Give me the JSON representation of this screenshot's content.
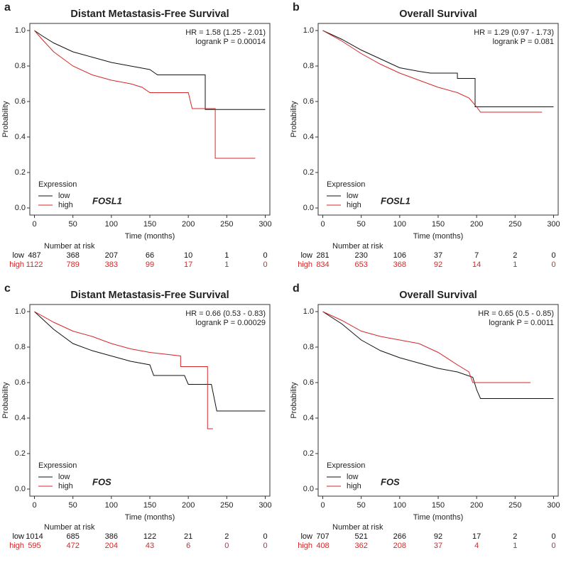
{
  "chart_data": [
    {
      "type": "line",
      "step": true,
      "panel": "a",
      "title": "Distant Metastasis-Free Survival",
      "xlabel": "Time (months)",
      "ylabel": "Probability",
      "hr": "HR = 1.58 (1.25 - 2.01)",
      "logrank": "logrank P = 0.00014",
      "gene": "FOSL1",
      "legend_title": "Expression",
      "risk_title": "Number at risk",
      "xlim": [
        -6,
        306
      ],
      "ylim": [
        -0.04,
        1.04
      ],
      "xticks": [
        0,
        50,
        100,
        150,
        200,
        250,
        300
      ],
      "yticks": [
        {
          "value": 0,
          "label": "0.0"
        },
        {
          "value": 0.2,
          "label": "0.2"
        },
        {
          "value": 0.4,
          "label": "0.4"
        },
        {
          "value": 0.6,
          "label": "0.6"
        },
        {
          "value": 0.8,
          "label": "0.8"
        },
        {
          "value": 1,
          "label": "1.0"
        }
      ],
      "series": [
        {
          "name": "low",
          "color": "#111111",
          "x": [
            0,
            10,
            25,
            50,
            75,
            100,
            125,
            150,
            160,
            222,
            222,
            300
          ],
          "values": [
            1,
            0.97,
            0.93,
            0.88,
            0.85,
            0.82,
            0.8,
            0.78,
            0.75,
            0.75,
            0.555,
            0.555
          ],
          "at_risk": [
            487,
            368,
            207,
            66,
            10,
            1,
            0
          ]
        },
        {
          "name": "high",
          "color": "#d62728",
          "x": [
            0,
            10,
            25,
            50,
            75,
            100,
            125,
            140,
            150,
            200,
            205,
            235,
            235,
            287
          ],
          "values": [
            1,
            0.95,
            0.88,
            0.8,
            0.75,
            0.72,
            0.7,
            0.68,
            0.65,
            0.65,
            0.56,
            0.56,
            0.28,
            0.28
          ],
          "at_risk": [
            1122,
            789,
            383,
            99,
            17,
            1,
            0
          ]
        }
      ]
    },
    {
      "type": "line",
      "step": true,
      "panel": "b",
      "title": "Overall Survival",
      "xlabel": "Time (months)",
      "ylabel": "Probability",
      "hr": "HR = 1.29 (0.97 - 1.73)",
      "logrank": "logrank P = 0.081",
      "gene": "FOSL1",
      "legend_title": "Expression",
      "risk_title": "Number at risk",
      "xlim": [
        -6,
        306
      ],
      "ylim": [
        -0.04,
        1.04
      ],
      "xticks": [
        0,
        50,
        100,
        150,
        200,
        250,
        300
      ],
      "yticks": [
        {
          "value": 0,
          "label": "0.0"
        },
        {
          "value": 0.2,
          "label": "0.2"
        },
        {
          "value": 0.4,
          "label": "0.4"
        },
        {
          "value": 0.6,
          "label": "0.6"
        },
        {
          "value": 0.8,
          "label": "0.8"
        },
        {
          "value": 1,
          "label": "1.0"
        }
      ],
      "series": [
        {
          "name": "low",
          "color": "#111111",
          "x": [
            0,
            25,
            50,
            75,
            100,
            125,
            140,
            175,
            175,
            198,
            198,
            300
          ],
          "values": [
            1,
            0.95,
            0.89,
            0.84,
            0.79,
            0.77,
            0.76,
            0.76,
            0.73,
            0.73,
            0.57,
            0.57
          ],
          "at_risk": [
            281,
            230,
            106,
            37,
            7,
            2,
            0
          ]
        },
        {
          "name": "high",
          "color": "#d62728",
          "x": [
            0,
            25,
            50,
            75,
            100,
            125,
            150,
            175,
            190,
            200,
            205,
            285
          ],
          "values": [
            1,
            0.94,
            0.87,
            0.81,
            0.76,
            0.72,
            0.68,
            0.65,
            0.62,
            0.57,
            0.54,
            0.54
          ],
          "at_risk": [
            834,
            653,
            368,
            92,
            14,
            1,
            0
          ]
        }
      ]
    },
    {
      "type": "line",
      "step": true,
      "panel": "c",
      "title": "Distant Metastasis-Free Survival",
      "xlabel": "Time (months)",
      "ylabel": "Probability",
      "hr": "HR = 0.66 (0.53 - 0.83)",
      "logrank": "logrank P = 0.00029",
      "gene": "FOS",
      "legend_title": "Expression",
      "risk_title": "Number at risk",
      "xlim": [
        -6,
        306
      ],
      "ylim": [
        -0.04,
        1.04
      ],
      "xticks": [
        0,
        50,
        100,
        150,
        200,
        250,
        300
      ],
      "yticks": [
        {
          "value": 0,
          "label": "0.0"
        },
        {
          "value": 0.2,
          "label": "0.2"
        },
        {
          "value": 0.4,
          "label": "0.4"
        },
        {
          "value": 0.6,
          "label": "0.6"
        },
        {
          "value": 0.8,
          "label": "0.8"
        },
        {
          "value": 1,
          "label": "1.0"
        }
      ],
      "series": [
        {
          "name": "low",
          "color": "#111111",
          "x": [
            0,
            25,
            50,
            75,
            100,
            125,
            150,
            155,
            195,
            200,
            230,
            237,
            300
          ],
          "values": [
            1,
            0.9,
            0.82,
            0.78,
            0.75,
            0.72,
            0.7,
            0.64,
            0.64,
            0.59,
            0.59,
            0.44,
            0.44
          ],
          "at_risk": [
            1014,
            685,
            386,
            122,
            21,
            2,
            0
          ]
        },
        {
          "name": "high",
          "color": "#d62728",
          "x": [
            0,
            25,
            50,
            75,
            100,
            125,
            150,
            190,
            190,
            225,
            225,
            232
          ],
          "values": [
            1,
            0.94,
            0.89,
            0.86,
            0.82,
            0.79,
            0.77,
            0.75,
            0.69,
            0.69,
            0.34,
            0.34
          ],
          "at_risk": [
            595,
            472,
            204,
            43,
            6,
            0,
            0
          ]
        }
      ]
    },
    {
      "type": "line",
      "step": true,
      "panel": "d",
      "title": "Overall Survival",
      "xlabel": "Time (months)",
      "ylabel": "Probability",
      "hr": "HR = 0.65 (0.5 - 0.85)",
      "logrank": "logrank P = 0.0011",
      "gene": "FOS",
      "legend_title": "Expression",
      "risk_title": "Number at risk",
      "xlim": [
        -6,
        306
      ],
      "ylim": [
        -0.04,
        1.04
      ],
      "xticks": [
        0,
        50,
        100,
        150,
        200,
        250,
        300
      ],
      "yticks": [
        {
          "value": 0,
          "label": "0.0"
        },
        {
          "value": 0.2,
          "label": "0.2"
        },
        {
          "value": 0.4,
          "label": "0.4"
        },
        {
          "value": 0.6,
          "label": "0.6"
        },
        {
          "value": 0.8,
          "label": "0.8"
        },
        {
          "value": 1,
          "label": "1.0"
        }
      ],
      "series": [
        {
          "name": "low",
          "color": "#111111",
          "x": [
            0,
            25,
            50,
            75,
            100,
            125,
            150,
            175,
            195,
            200,
            205,
            300
          ],
          "values": [
            1,
            0.93,
            0.84,
            0.78,
            0.74,
            0.71,
            0.68,
            0.66,
            0.63,
            0.56,
            0.51,
            0.51
          ],
          "at_risk": [
            707,
            521,
            266,
            92,
            17,
            2,
            0
          ]
        },
        {
          "name": "high",
          "color": "#d62728",
          "x": [
            0,
            25,
            50,
            75,
            100,
            125,
            150,
            175,
            190,
            195,
            270
          ],
          "values": [
            1,
            0.95,
            0.89,
            0.86,
            0.84,
            0.82,
            0.77,
            0.7,
            0.66,
            0.6,
            0.6
          ],
          "at_risk": [
            408,
            362,
            208,
            37,
            4,
            1,
            0
          ]
        }
      ]
    }
  ]
}
